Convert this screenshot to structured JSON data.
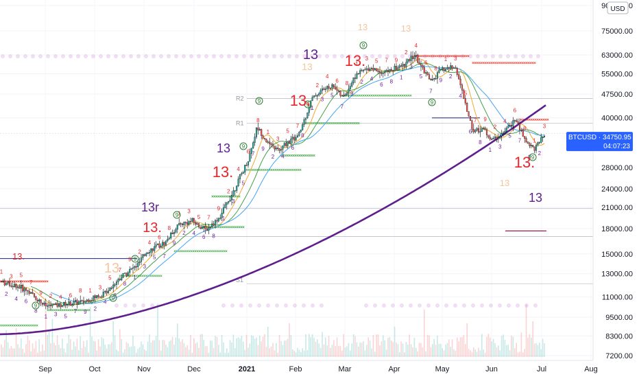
{
  "chart_data": {
    "type": "candlestick",
    "symbol_label": "BTCUSD",
    "last_price": "34750.95",
    "countdown": "04:07:23",
    "currency_badge": "USD",
    "y_scale": "log",
    "ylim": [
      7000,
      95000
    ],
    "y_ticks": [
      "90000.00",
      "75000.00",
      "63000.00",
      "55000.00",
      "47500.00",
      "40000.00",
      "34750.95",
      "28000.00",
      "24000.00",
      "21000.00",
      "18000.00",
      "15000.00",
      "13000.00",
      "11000.00",
      "9500.00",
      "8300.00",
      "7200.00"
    ],
    "x_labels": [
      "Sep",
      "Oct",
      "Nov",
      "Dec",
      "2021",
      "Feb",
      "Mar",
      "Apr",
      "May",
      "Jun",
      "Jul",
      "Aug"
    ],
    "pivot_labels": [
      "R2",
      "R1",
      "S1"
    ],
    "countdown_marks": [
      {
        "text": "13",
        "color": "#5e1f8c"
      },
      {
        "text": "13.",
        "color": "#e8252a"
      },
      {
        "text": "13",
        "color": "#f5c59c"
      },
      {
        "text": "13.",
        "color": "#e8252a"
      },
      {
        "text": "13",
        "color": "#5e1f8c"
      },
      {
        "text": "13.",
        "color": "#e8252a"
      },
      {
        "text": "13r",
        "color": "#5e1f8c"
      },
      {
        "text": "13.",
        "color": "#e8252a"
      },
      {
        "text": "13",
        "color": "#f5c59c"
      },
      {
        "text": "13.",
        "color": "#e8252a"
      },
      {
        "text": "13",
        "color": "#5e1f8c"
      },
      {
        "text": "13",
        "color": "#f5c59c"
      },
      {
        "text": "13.",
        "color": "#e8252a"
      },
      {
        "text": "13",
        "color": "#f5c59c"
      },
      {
        "text": "13",
        "color": "#f5c59c"
      }
    ],
    "setup_marks": [
      "9",
      "9",
      "9",
      "9",
      "9",
      "9",
      "9",
      "9",
      "9",
      "9"
    ],
    "colors": {
      "up": "#26a69a",
      "down": "#ef5350",
      "ma_fast": "#f0a830",
      "ma_mid": "#43a047",
      "ma_slow": "#42a5f5",
      "ma_200": "#5e1f8c",
      "price_tag": "#2962ff",
      "resistance": "#f44336",
      "support": "#4caf50"
    }
  }
}
